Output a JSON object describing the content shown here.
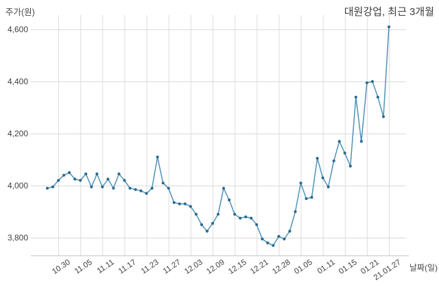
{
  "header": {
    "title": "대원강업, 최근 3개월"
  },
  "axes": {
    "y_title": "주가(원)",
    "x_title": "날짜(일)"
  },
  "chart_data": {
    "type": "line",
    "title": "대원강업, 최근 3개월",
    "ylabel": "주가(원)",
    "xlabel": "날짜(일)",
    "ylim": [
      3732,
      4655
    ],
    "grid": true,
    "legend": false,
    "y_ticks": [
      4600,
      4400,
      4200,
      4000,
      3800
    ],
    "y_tick_labels": [
      "4,600",
      "4,400",
      "4,200",
      "4,000",
      "3,800"
    ],
    "x_tick_labels": [
      "10.30",
      "11.05",
      "11.11",
      "11.17",
      "11.23",
      "11.27",
      "12.03",
      "12.09",
      "12.15",
      "12.21",
      "12.28",
      "01.05",
      "01.11",
      "01.15",
      "01.21",
      "21.01.27"
    ],
    "x_tick_point_indices": [
      2,
      6,
      10,
      14,
      18,
      22,
      26,
      30,
      34,
      38,
      42,
      46,
      50,
      54,
      58,
      62
    ],
    "series": [
      {
        "name": "주가",
        "x": "trading-day index 0-62 (daily points, ticks label every 4th day)",
        "values": [
          3990,
          3995,
          4020,
          4040,
          4050,
          4025,
          4020,
          4045,
          3995,
          4045,
          3995,
          4025,
          3990,
          4045,
          4020,
          3990,
          3985,
          3980,
          3970,
          3990,
          4110,
          4010,
          3990,
          3935,
          3930,
          3930,
          3920,
          3890,
          3850,
          3825,
          3855,
          3890,
          3990,
          3945,
          3890,
          3875,
          3880,
          3875,
          3850,
          3795,
          3780,
          3770,
          3805,
          3795,
          3825,
          3900,
          4010,
          3950,
          3955,
          4105,
          4030,
          3995,
          4095,
          4170,
          4125,
          4075,
          4340,
          4170,
          4395,
          4400,
          4340,
          4265,
          4610
        ]
      }
    ],
    "colors": {
      "line": "#4e92b8",
      "marker": "#2b6a8f",
      "grid_h": "#d9d9d9",
      "grid_v": "#dcdcdc",
      "axis": "#c6c6c6",
      "tick_text": "#3f3f3f",
      "title_text": "#3a3a3a",
      "background": "#ffffff"
    }
  }
}
